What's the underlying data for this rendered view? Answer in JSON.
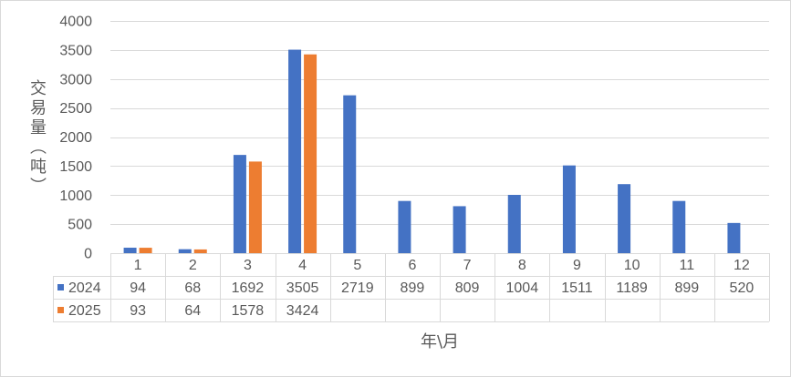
{
  "chart_data": {
    "type": "bar",
    "categories": [
      "1",
      "2",
      "3",
      "4",
      "5",
      "6",
      "7",
      "8",
      "9",
      "10",
      "11",
      "12"
    ],
    "series": [
      {
        "name": "2024",
        "values": [
          94,
          68,
          1692,
          3505,
          2719,
          899,
          809,
          1004,
          1511,
          1189,
          899,
          520
        ],
        "color": "#4472C4"
      },
      {
        "name": "2025",
        "values": [
          93,
          64,
          1578,
          3424,
          null,
          null,
          null,
          null,
          null,
          null,
          null,
          null
        ],
        "color": "#ED7D31"
      }
    ],
    "xlabel": "年\\月",
    "ylabel": "交易量（吨）",
    "ylim": [
      0,
      4000
    ],
    "yticks": [
      0,
      500,
      1000,
      1500,
      2000,
      2500,
      3000,
      3500,
      4000
    ],
    "grid": true,
    "legend_position": "data-table",
    "data_table": true
  }
}
